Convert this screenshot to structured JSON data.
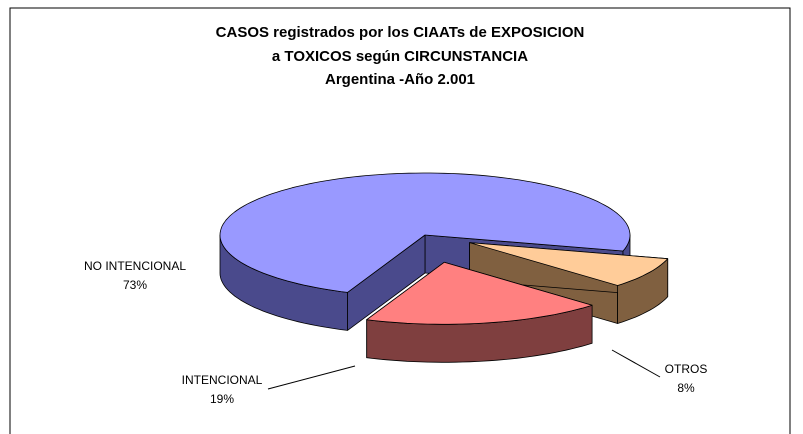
{
  "chart_data": {
    "type": "pie3d",
    "title": [
      "CASOS registrados por los CIAATs de EXPOSICION",
      "a TOXICOS según CIRCUNSTANCIA",
      "Argentina -Año 2.001"
    ],
    "categories": [
      "NO INTENCIONAL",
      "INTENCIONAL",
      "OTROS"
    ],
    "values": [
      73,
      19,
      8
    ],
    "value_labels": [
      "73%",
      "19%",
      "8%"
    ],
    "colors": [
      "#9999ff",
      "#ff8080",
      "#ffcc99"
    ],
    "side_colors": [
      "#4a4a8c",
      "#7f3f3f",
      "#806040"
    ]
  }
}
